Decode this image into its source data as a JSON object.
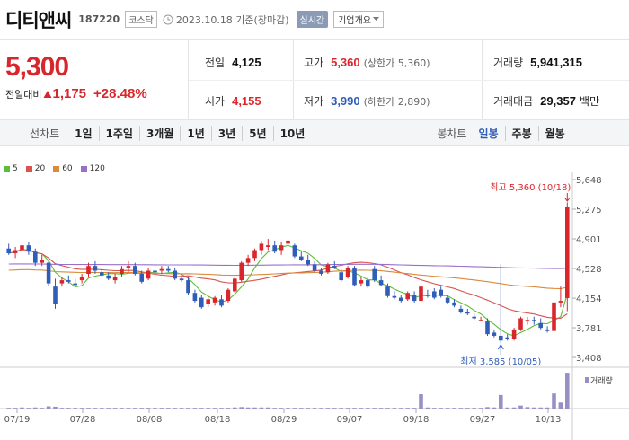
{
  "header": {
    "name": "디티앤씨",
    "code": "187220",
    "market": "코스닥",
    "date": "2023.10.18  기준(장마감)",
    "realtime": "실시간",
    "company_info": "기업개요"
  },
  "quote": {
    "price": "5,300",
    "change_label": "전일대비",
    "change": "1,175",
    "change_rate": "+28.48%",
    "prev_close_label": "전일",
    "prev_close": "4,125",
    "high_label": "고가",
    "high": "5,360",
    "upper_limit": "(상한가 5,360)",
    "volume_label": "거래량",
    "volume": "5,941,315",
    "open_label": "시가",
    "open": "4,155",
    "low_label": "저가",
    "low": "3,990",
    "lower_limit": "(하한가 2,890)",
    "amount_label": "거래대금",
    "amount": "29,357",
    "amount_unit": "백만"
  },
  "tabs": {
    "line_label": "선차트",
    "line": [
      "1일",
      "1주일",
      "3개월",
      "1년",
      "3년",
      "5년",
      "10년"
    ],
    "candle_label": "봉차트",
    "candle": [
      "일봉",
      "주봉",
      "월봉"
    ]
  },
  "colors": {
    "up": "#d9262c",
    "down": "#2f5db8",
    "ma5": "#5dbd3a",
    "ma20": "#d9534f",
    "ma60": "#d98a3a",
    "ma120": "#9b6fc9"
  },
  "chart_data": {
    "type": "candlestick",
    "legend": [
      {
        "name": "5",
        "color": "#5dbd3a"
      },
      {
        "name": "20",
        "color": "#d9534f"
      },
      {
        "name": "60",
        "color": "#d98a3a"
      },
      {
        "name": "120",
        "color": "#9b6fc9"
      }
    ],
    "y_ticks": [
      "5,648",
      "5,275",
      "4,901",
      "4,528",
      "4,154",
      "3,781",
      "3,408"
    ],
    "ylim": [
      3408,
      5648
    ],
    "x_ticks": [
      "07/19",
      "07/28",
      "08/08",
      "08/18",
      "08/29",
      "09/07",
      "09/18",
      "09/27",
      "10/13"
    ],
    "annotations": {
      "high": "최고 5,360 (10/18)",
      "low": "최저 3,585 (10/05)"
    },
    "volume_label": "거래량",
    "candles": [
      [
        4780,
        4840,
        4700,
        4720
      ],
      [
        4720,
        4800,
        4660,
        4760
      ],
      [
        4760,
        4860,
        4720,
        4820
      ],
      [
        4820,
        4860,
        4700,
        4740
      ],
      [
        4740,
        4780,
        4560,
        4600
      ],
      [
        4600,
        4700,
        4560,
        4640
      ],
      [
        4600,
        4620,
        4300,
        4340
      ],
      [
        4300,
        4400,
        4020,
        4080
      ],
      [
        4340,
        4420,
        4300,
        4380
      ],
      [
        4380,
        4440,
        4340,
        4360
      ],
      [
        4340,
        4400,
        4300,
        4320
      ],
      [
        4380,
        4460,
        4340,
        4420
      ],
      [
        4460,
        4600,
        4420,
        4560
      ],
      [
        4560,
        4620,
        4460,
        4500
      ],
      [
        4480,
        4520,
        4420,
        4440
      ],
      [
        4440,
        4480,
        4380,
        4400
      ],
      [
        4380,
        4460,
        4340,
        4420
      ],
      [
        4460,
        4560,
        4420,
        4520
      ],
      [
        4540,
        4620,
        4480,
        4560
      ],
      [
        4560,
        4600,
        4440,
        4460
      ],
      [
        4460,
        4500,
        4340,
        4360
      ],
      [
        4400,
        4540,
        4380,
        4500
      ],
      [
        4500,
        4560,
        4440,
        4480
      ],
      [
        4500,
        4560,
        4460,
        4520
      ],
      [
        4520,
        4560,
        4480,
        4500
      ],
      [
        4500,
        4540,
        4380,
        4400
      ],
      [
        4400,
        4460,
        4360,
        4380
      ],
      [
        4380,
        4420,
        4200,
        4220
      ],
      [
        4220,
        4260,
        4100,
        4120
      ],
      [
        4160,
        4200,
        4020,
        4040
      ],
      [
        4080,
        4180,
        4040,
        4140
      ],
      [
        4100,
        4180,
        4060,
        4160
      ],
      [
        4140,
        4200,
        4040,
        4060
      ],
      [
        4120,
        4280,
        4100,
        4260
      ],
      [
        4240,
        4420,
        4220,
        4400
      ],
      [
        4380,
        4620,
        4360,
        4600
      ],
      [
        4600,
        4700,
        4560,
        4660
      ],
      [
        4660,
        4780,
        4620,
        4760
      ],
      [
        4760,
        4880,
        4700,
        4840
      ],
      [
        4800,
        4900,
        4760,
        4820
      ],
      [
        4820,
        4880,
        4720,
        4740
      ],
      [
        4760,
        4860,
        4700,
        4820
      ],
      [
        4840,
        4920,
        4780,
        4880
      ],
      [
        4820,
        4840,
        4660,
        4680
      ],
      [
        4680,
        4740,
        4620,
        4640
      ],
      [
        4640,
        4700,
        4560,
        4580
      ],
      [
        4580,
        4620,
        4480,
        4500
      ],
      [
        4500,
        4540,
        4440,
        4460
      ],
      [
        4480,
        4600,
        4460,
        4580
      ],
      [
        4560,
        4620,
        4520,
        4540
      ],
      [
        4480,
        4520,
        4360,
        4380
      ],
      [
        4420,
        4560,
        4400,
        4540
      ],
      [
        4540,
        4560,
        4300,
        4320
      ],
      [
        4340,
        4420,
        4300,
        4380
      ],
      [
        4380,
        4420,
        4280,
        4300
      ],
      [
        4520,
        4560,
        4360,
        4380
      ],
      [
        4380,
        4440,
        4300,
        4320
      ],
      [
        4300,
        4340,
        4160,
        4180
      ],
      [
        4180,
        4240,
        4140,
        4160
      ],
      [
        4160,
        4200,
        4100,
        4120
      ],
      [
        4140,
        4240,
        4120,
        4220
      ],
      [
        4200,
        4240,
        4100,
        4120
      ],
      [
        4120,
        4900,
        4100,
        4300
      ],
      [
        4200,
        4260,
        4160,
        4180
      ],
      [
        4240,
        4280,
        4140,
        4160
      ],
      [
        4260,
        4300,
        4160,
        4180
      ],
      [
        4160,
        4200,
        4080,
        4100
      ],
      [
        4100,
        4140,
        4040,
        4060
      ],
      [
        4020,
        4060,
        3960,
        3980
      ],
      [
        3980,
        4020,
        3940,
        3960
      ],
      [
        3920,
        3960,
        3880,
        3900
      ],
      [
        3880,
        3920,
        3860,
        3880
      ],
      [
        3860,
        3900,
        3680,
        3700
      ],
      [
        3720,
        3760,
        3660,
        3680
      ],
      [
        3680,
        4580,
        3585,
        3620
      ],
      [
        3660,
        3700,
        3620,
        3640
      ],
      [
        3640,
        3780,
        3620,
        3760
      ],
      [
        3760,
        3920,
        3740,
        3900
      ],
      [
        3860,
        3920,
        3820,
        3880
      ],
      [
        3880,
        3920,
        3820,
        3860
      ],
      [
        3840,
        3900,
        3760,
        3780
      ],
      [
        3760,
        3800,
        3720,
        3740
      ],
      [
        3740,
        4600,
        3720,
        4100
      ],
      [
        4100,
        4300,
        4040,
        4120
      ],
      [
        4155,
        5360,
        3990,
        5300
      ]
    ],
    "volumes": [
      0.02,
      0.02,
      0.03,
      0.02,
      0.03,
      0.02,
      0.06,
      0.05,
      0.02,
      0.02,
      0.02,
      0.02,
      0.02,
      0.02,
      0.02,
      0.02,
      0.02,
      0.02,
      0.02,
      0.02,
      0.02,
      0.02,
      0.02,
      0.02,
      0.02,
      0.02,
      0.02,
      0.02,
      0.02,
      0.02,
      0.02,
      0.02,
      0.02,
      0.02,
      0.03,
      0.04,
      0.03,
      0.03,
      0.03,
      0.03,
      0.02,
      0.02,
      0.02,
      0.02,
      0.02,
      0.02,
      0.02,
      0.02,
      0.02,
      0.02,
      0.02,
      0.02,
      0.02,
      0.02,
      0.02,
      0.02,
      0.02,
      0.02,
      0.02,
      0.02,
      0.02,
      0.02,
      0.38,
      0.03,
      0.02,
      0.02,
      0.02,
      0.02,
      0.02,
      0.02,
      0.02,
      0.02,
      0.04,
      0.03,
      0.36,
      0.03,
      0.03,
      0.08,
      0.04,
      0.03,
      0.03,
      0.03,
      0.4,
      0.16,
      0.95
    ]
  }
}
